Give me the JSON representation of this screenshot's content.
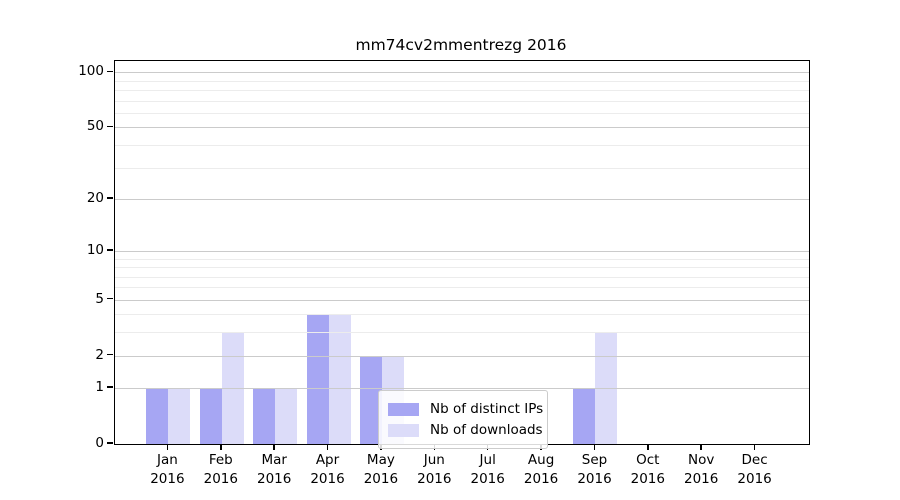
{
  "chart_data": {
    "type": "bar",
    "title": "mm74cv2mmentrezg 2016",
    "xlabel": "",
    "ylabel": "",
    "categories": [
      "Jan 2016",
      "Feb 2016",
      "Mar 2016",
      "Apr 2016",
      "May 2016",
      "Jun 2016",
      "Jul 2016",
      "Aug 2016",
      "Sep 2016",
      "Oct 2016",
      "Nov 2016",
      "Dec 2016"
    ],
    "x_tick_months": [
      "Jan",
      "Feb",
      "Mar",
      "Apr",
      "May",
      "Jun",
      "Jul",
      "Aug",
      "Sep",
      "Oct",
      "Nov",
      "Dec"
    ],
    "x_tick_year": "2016",
    "series": [
      {
        "name": "Nb of distinct IPs",
        "color": "#a6a6f3",
        "values": [
          1,
          1,
          1,
          4,
          2,
          0,
          0,
          0,
          1,
          0,
          0,
          0
        ]
      },
      {
        "name": "Nb of downloads",
        "color": "#dcdcf9",
        "values": [
          1,
          3,
          1,
          4,
          2,
          0,
          0,
          0,
          3,
          0,
          0,
          0
        ]
      }
    ],
    "y_scale": "log1p",
    "y_major_ticks": [
      0,
      1,
      2,
      5,
      10,
      20,
      50,
      100
    ],
    "y_minor_gridlines": [
      3,
      4,
      6,
      7,
      8,
      9,
      30,
      40,
      60,
      70,
      80,
      90
    ],
    "ylim": [
      0,
      115
    ],
    "grid": true,
    "legend_position": "lower-center-left",
    "colors": {
      "axis": "#000000",
      "grid_major": "#cbcbcb",
      "grid_minor": "#ececec",
      "background": "#ffffff",
      "text": "#000000"
    }
  }
}
